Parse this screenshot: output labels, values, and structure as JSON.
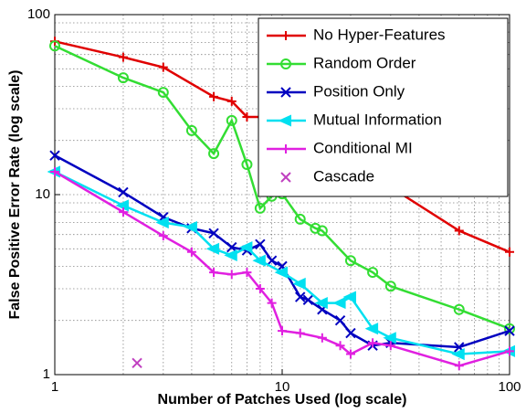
{
  "chart_data": {
    "type": "line",
    "xlabel": "Number of Patches Used (log scale)",
    "ylabel": "False Positive Error Rate (log scale)",
    "xscale": "log",
    "yscale": "log",
    "xlim": [
      1,
      100
    ],
    "ylim": [
      1,
      100
    ],
    "xticks": [
      1,
      10,
      100
    ],
    "yticks": [
      1,
      10,
      100
    ],
    "grid": true,
    "legend": "upper right",
    "series": [
      {
        "name": "No Hyper-Features",
        "color": "#e00000",
        "marker": "plus",
        "x": [
          1,
          2,
          3,
          5,
          6,
          7,
          8,
          10,
          15,
          20,
          30,
          60,
          100
        ],
        "values": [
          71,
          58,
          51,
          35,
          33,
          27,
          27,
          22,
          17,
          14,
          11,
          6.3,
          4.8
        ]
      },
      {
        "name": "Random Order",
        "color": "#33dd33",
        "marker": "circle",
        "x": [
          1,
          2,
          3,
          4,
          5,
          6,
          7,
          8,
          9,
          10,
          12,
          14,
          15,
          20,
          25,
          30,
          60,
          100
        ],
        "values": [
          67,
          44.6,
          37,
          22.7,
          16.9,
          25.8,
          14.7,
          8.4,
          9.8,
          10.1,
          7.3,
          6.5,
          6.3,
          4.3,
          3.7,
          3.1,
          2.3,
          1.8
        ]
      },
      {
        "name": "Position Only",
        "color": "#0000c0",
        "marker": "x",
        "x": [
          1,
          2,
          3,
          4,
          5,
          6,
          7,
          8,
          9,
          10,
          12,
          13,
          15,
          18,
          20,
          25,
          30,
          60,
          100
        ],
        "values": [
          16.5,
          10.3,
          7.5,
          6.5,
          6.1,
          5.1,
          4.9,
          5.3,
          4.3,
          4.0,
          2.7,
          2.6,
          2.3,
          2.0,
          1.7,
          1.45,
          1.5,
          1.42,
          1.75
        ]
      },
      {
        "name": "Mutual Information",
        "color": "#00e0f0",
        "marker": "triangle-left",
        "x": [
          1,
          2,
          3,
          4,
          5,
          6,
          7,
          8,
          10,
          12,
          15,
          18,
          20,
          25,
          30,
          60,
          100
        ],
        "values": [
          13.4,
          8.7,
          7.0,
          6.6,
          5.0,
          4.6,
          5.1,
          4.3,
          3.7,
          3.2,
          2.5,
          2.5,
          2.7,
          1.8,
          1.6,
          1.3,
          1.35
        ]
      },
      {
        "name": "Conditional MI",
        "color": "#e020e0",
        "marker": "plus",
        "x": [
          1,
          2,
          3,
          4,
          5,
          6,
          7,
          8,
          9,
          10,
          12,
          15,
          18,
          20,
          25,
          30,
          60,
          100
        ],
        "values": [
          13.4,
          8.0,
          5.9,
          4.8,
          3.7,
          3.6,
          3.7,
          3.0,
          2.5,
          1.75,
          1.7,
          1.6,
          1.45,
          1.3,
          1.5,
          1.45,
          1.12,
          1.35
        ]
      },
      {
        "name": "Cascade",
        "color": "#c040c0",
        "marker": "x",
        "linestyle": "none",
        "x": [
          2.3
        ],
        "values": [
          1.16
        ]
      }
    ]
  }
}
